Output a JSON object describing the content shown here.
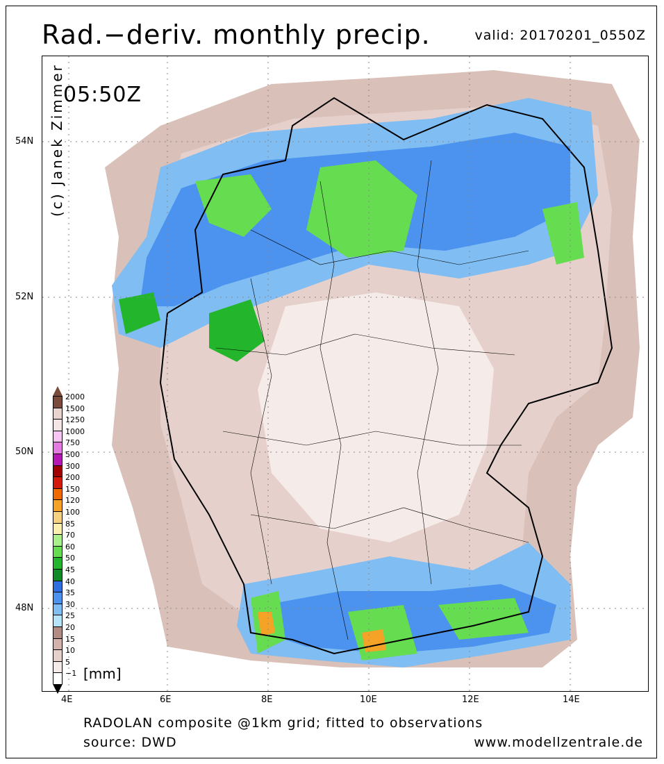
{
  "header": {
    "title": "Rad.−deriv. monthly precip.",
    "valid": "valid: 20170201_0550Z"
  },
  "map": {
    "time_label": "05:50Z",
    "credit": "(c) Janek Zimmer",
    "lat_labels": [
      "54N",
      "52N",
      "50N",
      "48N"
    ],
    "lon_labels": [
      "4E",
      "6E",
      "8E",
      "10E",
      "12E",
      "14E"
    ]
  },
  "legend": {
    "labels": [
      "2000",
      "1500",
      "1250",
      "1000",
      "750",
      "500",
      "300",
      "200",
      "150",
      "120",
      "100",
      "85",
      "70",
      "60",
      "50",
      "45",
      "40",
      "35",
      "30",
      "25",
      "20",
      "15",
      "10",
      "5",
      "−1"
    ],
    "unit": "[mm]",
    "colors": [
      "#7a4a3a",
      "#e9d3cf",
      "#f4e6e4",
      "#f7c4f4",
      "#e27ae0",
      "#b617b3",
      "#a00000",
      "#d31a0a",
      "#f06a00",
      "#f5a326",
      "#f5d180",
      "#fbefb0",
      "#a8f08a",
      "#66dc50",
      "#23b52b",
      "#0f8a26",
      "#2d6fe0",
      "#4b93ee",
      "#7fbdf2",
      "#b5e3fa",
      "#b48b82",
      "#d2b2aa",
      "#e6d0cb",
      "#f5ebe8",
      "#ffffff"
    ]
  },
  "footer": {
    "line1": "RADOLAN composite @1km grid; fitted to observations",
    "line2": "source: DWD",
    "site": "www.modellzentrale.de"
  }
}
